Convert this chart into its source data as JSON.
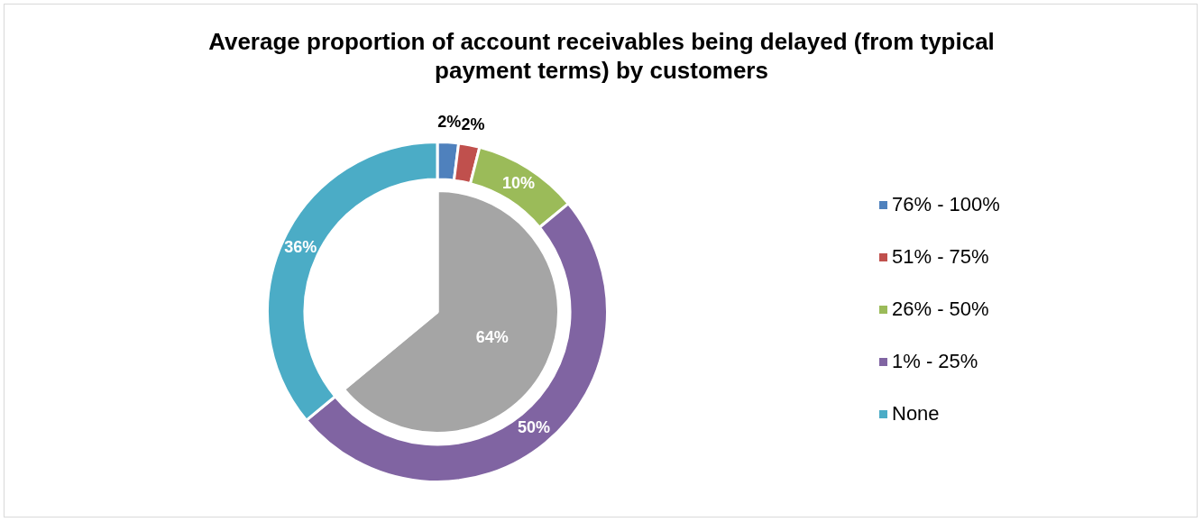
{
  "chart_data": [
    {
      "type": "donut",
      "title": "Average proportion of account receivables being delayed (from typical payment terms) by customers",
      "categories": [
        "76% - 100%",
        "51% - 75%",
        "26% - 50%",
        "1% - 25%",
        "None"
      ],
      "legend": "right",
      "values": [
        2,
        2,
        10,
        50,
        36
      ],
      "colors": [
        "#4f81bd",
        "#c0504d",
        "#9bbb59",
        "#8064a2",
        "#4bacc6"
      ],
      "value_labels": [
        "2%",
        "2%",
        "10%",
        "50%",
        "36%"
      ]
    },
    {
      "type": "pie",
      "categories": [
        null,
        null
      ],
      "values": [
        64,
        36
      ],
      "colors": [
        "#a5a5a5",
        "#ffffff"
      ],
      "value_labels": [
        "64%",
        null
      ]
    }
  ]
}
